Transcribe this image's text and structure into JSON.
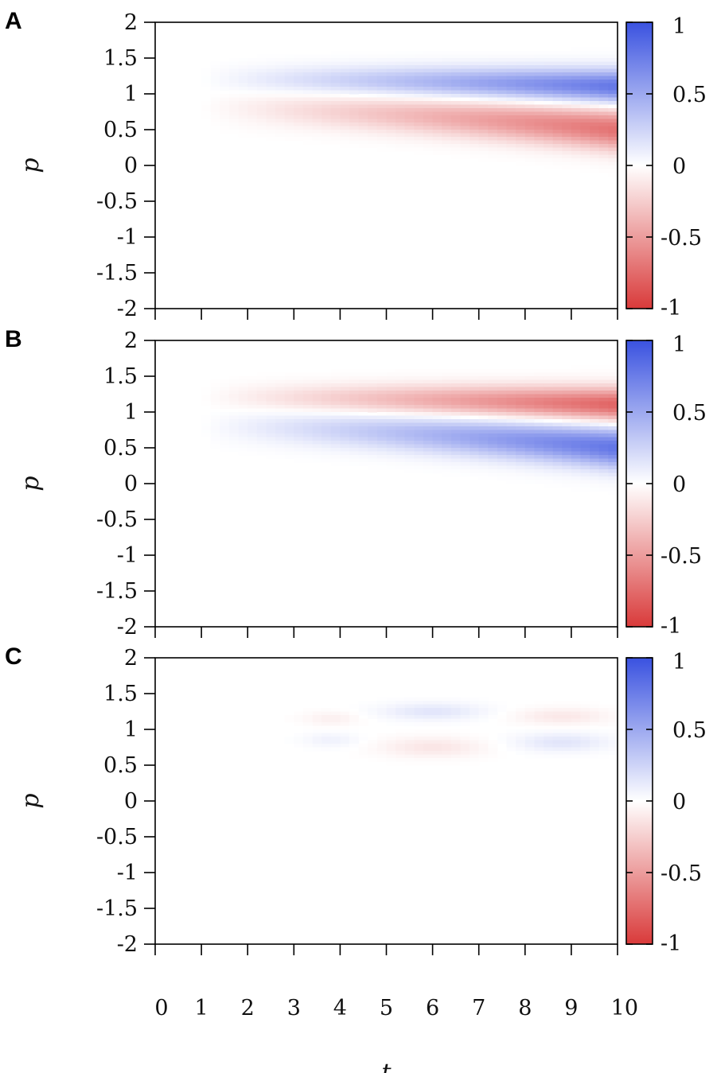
{
  "chart_data": [
    {
      "type": "heatmap",
      "panel_label": "A",
      "xlim": [
        0,
        10
      ],
      "ylim": [
        -2,
        2
      ],
      "ylabel": "p",
      "x_ticks": [
        "0",
        "1",
        "2",
        "3",
        "4",
        "5",
        "6",
        "7",
        "8",
        "9",
        "10"
      ],
      "y_ticks": [
        "2",
        "1.5",
        "1",
        "0.5",
        "0",
        "-0.5",
        "-1",
        "-1.5",
        "-2"
      ],
      "colorbar": {
        "range": [
          -1,
          1
        ],
        "ticks": [
          "1",
          "0.5",
          "0",
          "-0.5",
          "-1"
        ],
        "low_color": "#d93a3a",
        "mid_color": "#ffffff",
        "high_color": "#3a52e0"
      },
      "bands": [
        {
          "center_p": 1.2,
          "end_center_p": 1.1,
          "sign": 1,
          "peak": 0.8,
          "width": 0.18,
          "start_t": 1.0,
          "growth": 1.0
        },
        {
          "center_p": 0.8,
          "end_center_p": 0.5,
          "sign": -1,
          "peak": 0.72,
          "width": 0.22,
          "start_t": 1.0,
          "growth": 1.0
        }
      ]
    },
    {
      "type": "heatmap",
      "panel_label": "B",
      "xlim": [
        0,
        10
      ],
      "ylim": [
        -2,
        2
      ],
      "ylabel": "p",
      "x_ticks": [
        "0",
        "1",
        "2",
        "3",
        "4",
        "5",
        "6",
        "7",
        "8",
        "9",
        "10"
      ],
      "y_ticks": [
        "2",
        "1.5",
        "1",
        "0.5",
        "0",
        "-0.5",
        "-1",
        "-1.5",
        "-2"
      ],
      "colorbar": {
        "range": [
          -1,
          1
        ],
        "ticks": [
          "1",
          "0.5",
          "0",
          "-0.5",
          "-1"
        ],
        "low_color": "#d93a3a",
        "mid_color": "#ffffff",
        "high_color": "#3a52e0"
      },
      "bands": [
        {
          "center_p": 1.2,
          "end_center_p": 1.1,
          "sign": -1,
          "peak": 0.8,
          "width": 0.18,
          "start_t": 1.0,
          "growth": 1.0
        },
        {
          "center_p": 0.8,
          "end_center_p": 0.5,
          "sign": 1,
          "peak": 0.8,
          "width": 0.22,
          "start_t": 1.0,
          "growth": 1.0
        }
      ]
    },
    {
      "type": "heatmap",
      "panel_label": "C",
      "xlim": [
        0,
        10
      ],
      "ylim": [
        -2,
        2
      ],
      "ylabel": "p",
      "xlabel": "t",
      "x_ticks": [
        "0",
        "1",
        "2",
        "3",
        "4",
        "5",
        "6",
        "7",
        "8",
        "9",
        "10"
      ],
      "y_ticks": [
        "2",
        "1.5",
        "1",
        "0.5",
        "0",
        "-0.5",
        "-1",
        "-1.5",
        "-2"
      ],
      "colorbar": {
        "range": [
          -1,
          1
        ],
        "ticks": [
          "1",
          "0.5",
          "0",
          "-0.5",
          "-1"
        ],
        "low_color": "#d93a3a",
        "mid_color": "#ffffff",
        "high_color": "#3a52e0"
      },
      "blobs": [
        {
          "t": 3.8,
          "p": 1.15,
          "value": -0.08,
          "st": 0.6,
          "sp": 0.1
        },
        {
          "t": 3.8,
          "p": 0.85,
          "value": 0.08,
          "st": 0.6,
          "sp": 0.1
        },
        {
          "t": 6.0,
          "p": 1.25,
          "value": 0.15,
          "st": 1.1,
          "sp": 0.12
        },
        {
          "t": 6.0,
          "p": 0.75,
          "value": -0.13,
          "st": 1.1,
          "sp": 0.14
        },
        {
          "t": 8.8,
          "p": 1.18,
          "value": -0.12,
          "st": 1.0,
          "sp": 0.12
        },
        {
          "t": 8.8,
          "p": 0.82,
          "value": 0.15,
          "st": 1.0,
          "sp": 0.13
        }
      ]
    }
  ]
}
